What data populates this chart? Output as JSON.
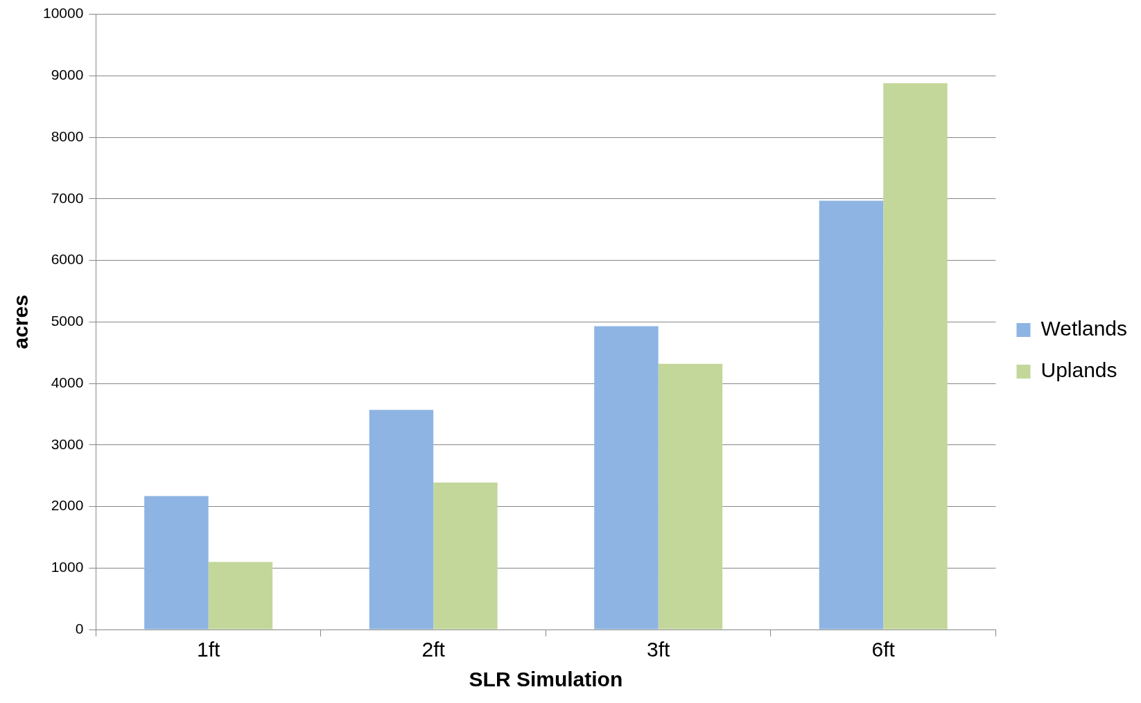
{
  "chart_data": {
    "type": "bar",
    "xlabel": "SLR Simulation",
    "ylabel": "acres",
    "categories": [
      "1ft",
      "2ft",
      "3ft",
      "6ft"
    ],
    "series": [
      {
        "name": "Wetlands",
        "color": "#8eb4e3",
        "values": [
          2170,
          3570,
          4930,
          6970
        ]
      },
      {
        "name": "Uplands",
        "color": "#c4d79b",
        "values": [
          1100,
          2390,
          4320,
          8880
        ]
      }
    ],
    "ylim": [
      0,
      10000
    ],
    "yticks": [
      0,
      1000,
      2000,
      3000,
      4000,
      5000,
      6000,
      7000,
      8000,
      9000,
      10000
    ],
    "grid": "y",
    "legend": "right"
  }
}
